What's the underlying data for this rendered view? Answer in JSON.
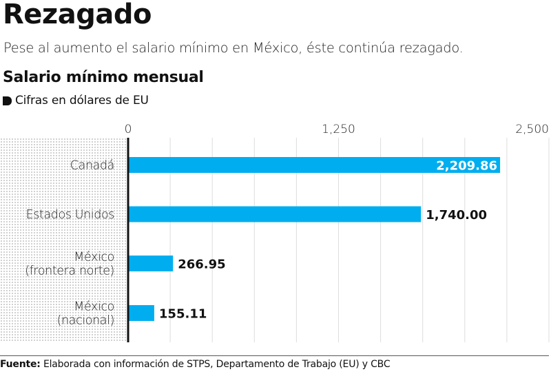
{
  "header": {
    "title": "Rezagado",
    "subtitle": "Pese al aumento el salario mínimo en México, éste continúa rezagado.",
    "chart_title": "Salario mínimo mensual",
    "units": "Cifras en dólares de EU"
  },
  "footer": {
    "label": "Fuente:",
    "text": " Elaborada con información de STPS, Departamento de Trabajo (EU) y CBC"
  },
  "colors": {
    "bar": "#00aeef",
    "axis": "#111111",
    "grid": "#dddddd"
  },
  "chart_data": {
    "type": "bar",
    "orientation": "horizontal",
    "title": "Salario mínimo mensual",
    "subtitle": "Cifras en dólares de EU",
    "xlabel": "",
    "ylabel": "",
    "categories": [
      [
        "Canadá"
      ],
      [
        "Estados Unidos"
      ],
      [
        "México",
        "(frontera norte)"
      ],
      [
        "México",
        "(nacional)"
      ]
    ],
    "values": [
      2209.86,
      1740.0,
      266.95,
      155.11
    ],
    "value_labels": [
      "2,209.86",
      "1,740.00",
      "266.95",
      "155.11"
    ],
    "xlim": [
      0,
      2500
    ],
    "xticks": [
      0,
      1250,
      2500
    ],
    "xtick_labels": [
      "0",
      "1,250",
      "2,500"
    ],
    "grid_step": 250,
    "grid": true,
    "axis_position": "top",
    "legend": "none"
  }
}
